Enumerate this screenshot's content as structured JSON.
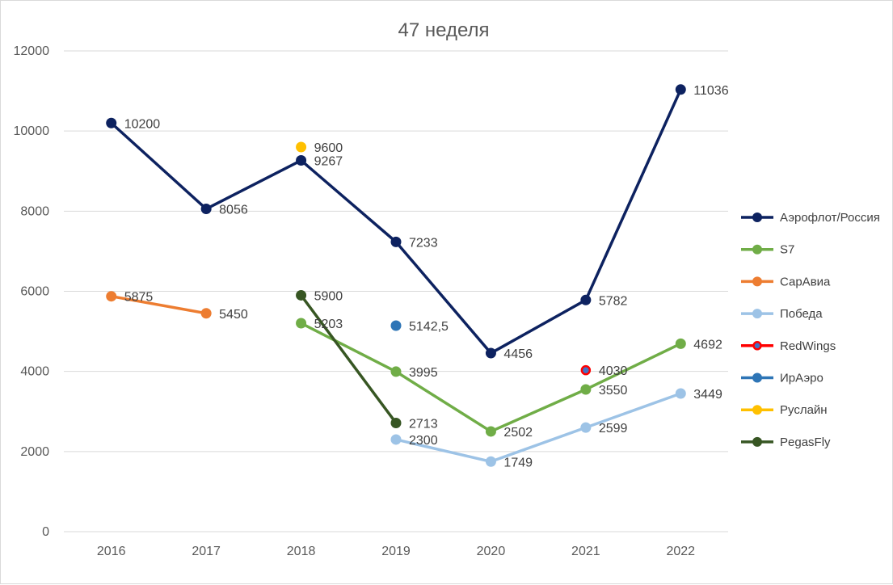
{
  "chart_data": {
    "type": "line",
    "title": "47 неделя",
    "xlabel": "",
    "ylabel": "",
    "categories": [
      "2016",
      "2017",
      "2018",
      "2019",
      "2020",
      "2021",
      "2022"
    ],
    "ylim": [
      0,
      12000
    ],
    "yticks": [
      "0",
      "2000",
      "4000",
      "6000",
      "8000",
      "10000",
      "12000"
    ],
    "grid": true,
    "legend_position": "right",
    "series": [
      {
        "name": "Аэрофлот/Россия",
        "color": "#0d2260",
        "values": [
          10200,
          8056,
          9267,
          7233,
          4456,
          5782,
          11036
        ],
        "labels": [
          "10200",
          "8056",
          "9267",
          "7233",
          "4456",
          "5782",
          "11036"
        ]
      },
      {
        "name": "S7",
        "color": "#70ad47",
        "values": [
          null,
          null,
          5203,
          3995,
          2502,
          3550,
          4692
        ],
        "labels": [
          null,
          null,
          "5203",
          "3995",
          "2502",
          "3550",
          "4692"
        ]
      },
      {
        "name": "СарАвиа",
        "color": "#ed7d31",
        "values": [
          5875,
          5450,
          null,
          null,
          null,
          null,
          null
        ],
        "labels": [
          "5875",
          "5450",
          null,
          null,
          null,
          null,
          null
        ]
      },
      {
        "name": "Победа",
        "color": "#9dc3e6",
        "values": [
          null,
          null,
          null,
          2300,
          1749,
          2599,
          3449
        ],
        "labels": [
          null,
          null,
          null,
          "2300",
          "1749",
          "2599",
          "3449"
        ]
      },
      {
        "name": "RedWings",
        "color": "#ff0000",
        "marker_color": "#4472c4",
        "values": [
          null,
          null,
          null,
          null,
          null,
          4030,
          null
        ],
        "labels": [
          null,
          null,
          null,
          null,
          null,
          "4030",
          null
        ]
      },
      {
        "name": "ИрАэро",
        "color": "#2e75b6",
        "values": [
          null,
          null,
          null,
          5142.5,
          null,
          null,
          null
        ],
        "labels": [
          null,
          null,
          null,
          "5142,5",
          null,
          null,
          null
        ]
      },
      {
        "name": "Руслайн",
        "color": "#ffc000",
        "values": [
          null,
          null,
          9600,
          null,
          null,
          null,
          null
        ],
        "labels": [
          null,
          null,
          "9600",
          null,
          null,
          null,
          null
        ]
      },
      {
        "name": "PegasFly",
        "color": "#375623",
        "values": [
          null,
          null,
          5900,
          2713,
          null,
          null,
          null
        ],
        "labels": [
          null,
          null,
          "5900",
          "2713",
          null,
          null,
          null
        ]
      }
    ]
  }
}
